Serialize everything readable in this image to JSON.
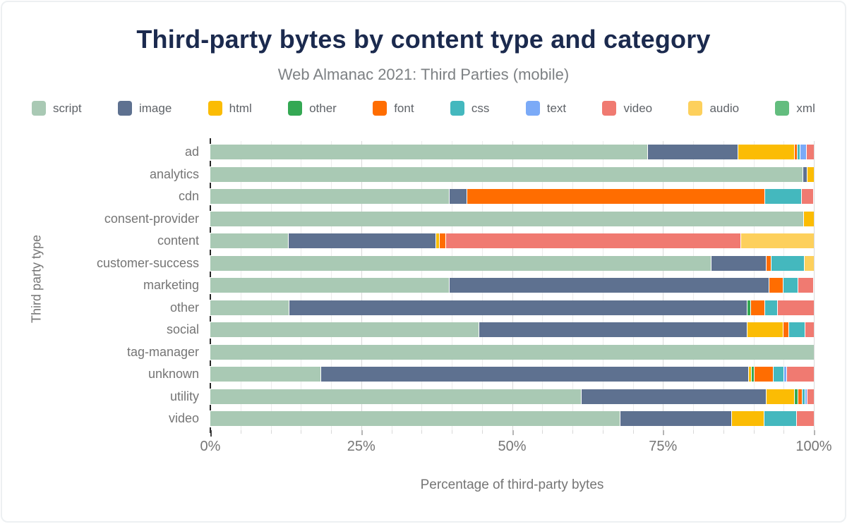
{
  "chart_data": {
    "type": "bar",
    "orientation": "horizontal",
    "stacked": true,
    "title": "Third-party bytes by content type and category",
    "subtitle": "Web Almanac 2021: Third Parties (mobile)",
    "xlabel": "Percentage of third-party bytes",
    "ylabel": "Third party type",
    "xlim": [
      0,
      100
    ],
    "x_ticks": [
      0,
      25,
      50,
      75,
      100
    ],
    "x_tick_labels": [
      "0%",
      "25%",
      "50%",
      "75%",
      "100%"
    ],
    "grid": {
      "minor_step_pct": 5,
      "major_step_pct": 25
    },
    "legend_position": "top",
    "categories": [
      "ad",
      "analytics",
      "cdn",
      "consent-provider",
      "content",
      "customer-success",
      "marketing",
      "other",
      "social",
      "tag-manager",
      "unknown",
      "utility",
      "video"
    ],
    "series": [
      {
        "name": "script",
        "color": "#a9c9b4",
        "values": [
          72.5,
          98.3,
          39.6,
          98.4,
          13.0,
          83.0,
          39.6,
          13.1,
          44.6,
          100,
          18.4,
          61.5,
          67.9
        ]
      },
      {
        "name": "image",
        "color": "#5e7190",
        "values": [
          15.0,
          0.7,
          3.0,
          0,
          24.4,
          9.2,
          53.0,
          75.9,
          44.4,
          0,
          70.8,
          30.7,
          18.5
        ]
      },
      {
        "name": "html",
        "color": "#fbbc04",
        "values": [
          9.3,
          1.0,
          0,
          1.6,
          0.6,
          0,
          0,
          0,
          6.0,
          0,
          0.5,
          4.7,
          5.4
        ]
      },
      {
        "name": "other",
        "color": "#34a853",
        "values": [
          0,
          0,
          0,
          0,
          0,
          0,
          0,
          0.6,
          0,
          0,
          0.5,
          0.5,
          0
        ]
      },
      {
        "name": "font",
        "color": "#ff6d01",
        "values": [
          0.5,
          0,
          49.3,
          0,
          1.1,
          0.8,
          2.4,
          2.3,
          0.9,
          0,
          3.1,
          0.7,
          0
        ]
      },
      {
        "name": "css",
        "color": "#44b8be",
        "values": [
          0.5,
          0,
          6.1,
          0,
          0,
          5.5,
          2.4,
          2.1,
          2.7,
          0,
          1.8,
          0.5,
          5.4
        ]
      },
      {
        "name": "text",
        "color": "#7baaf7",
        "values": [
          1.0,
          0,
          0,
          0,
          0,
          0,
          0,
          0,
          0,
          0,
          0.5,
          0.4,
          0
        ]
      },
      {
        "name": "video",
        "color": "#f07a71",
        "values": [
          1.2,
          0,
          1.9,
          0,
          48.8,
          0,
          2.5,
          6.0,
          1.4,
          0,
          4.4,
          1.0,
          2.8
        ]
      },
      {
        "name": "audio",
        "color": "#fdd05c",
        "values": [
          0,
          0,
          0,
          0,
          12.1,
          1.5,
          0,
          0,
          0,
          0,
          0,
          0,
          0
        ]
      },
      {
        "name": "xml",
        "color": "#63bd7e",
        "values": [
          0,
          0,
          0,
          0,
          0,
          0,
          0,
          0,
          0,
          0,
          0,
          0,
          0
        ]
      }
    ]
  }
}
